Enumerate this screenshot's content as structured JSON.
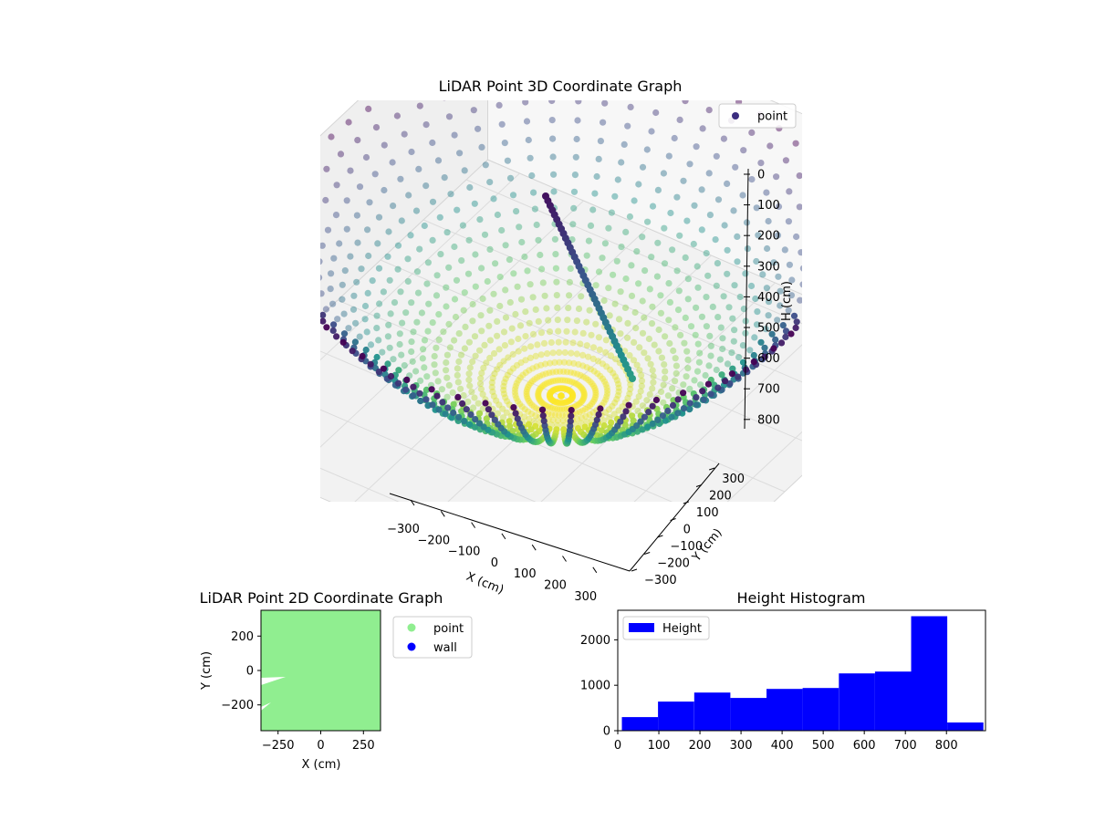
{
  "chart_data": [
    {
      "type": "scatter",
      "title": "LiDAR Point 3D Coordinate Graph",
      "xlabel": "X (cm)",
      "ylabel": "Y (cm)",
      "zlabel": "H (cm)",
      "xlim": [
        -350,
        350
      ],
      "ylim": [
        -350,
        350
      ],
      "zlim": [
        0,
        900
      ],
      "z_inverted": true,
      "x_ticks": [
        "−300",
        "−200",
        "−100",
        "0",
        "100",
        "200",
        "300"
      ],
      "y_ticks": [
        "−300",
        "−200",
        "−100",
        "0",
        "100",
        "200",
        "300"
      ],
      "z_ticks": [
        "0",
        "100",
        "200",
        "300",
        "400",
        "500",
        "600",
        "700",
        "800"
      ],
      "legend": [
        "point"
      ],
      "legend_position": "top-right",
      "colormap": "viridis",
      "colors": {
        "point_legend": "#3b2d7f"
      },
      "grid": true
    },
    {
      "type": "scatter",
      "title": "LiDAR Point 2D Coordinate Graph",
      "xlabel": "X (cm)",
      "ylabel": "Y (cm)",
      "xlim": [
        -350,
        350
      ],
      "ylim": [
        -350,
        350
      ],
      "x_ticks": [
        -250,
        0,
        250
      ],
      "y_ticks": [
        -200,
        0,
        200
      ],
      "x_tick_labels": [
        "−250",
        "0",
        "250"
      ],
      "y_tick_labels": [
        "−200",
        "0",
        "200"
      ],
      "legend": [
        "point",
        "wall"
      ],
      "legend_position": "outside-right",
      "colors": {
        "point": "#90ee90",
        "wall": "#0000ff"
      },
      "grid": false
    },
    {
      "type": "bar",
      "title": "Height Histogram",
      "xlabel": "",
      "ylabel": "",
      "bin_edges": [
        10,
        98,
        186,
        274,
        362,
        450,
        538,
        626,
        714,
        802,
        890
      ],
      "values": [
        300,
        640,
        840,
        720,
        920,
        940,
        1260,
        1300,
        2520,
        180
      ],
      "xlim": [
        0,
        895
      ],
      "ylim": [
        0,
        2650
      ],
      "x_ticks": [
        0,
        100,
        200,
        300,
        400,
        500,
        600,
        700,
        800
      ],
      "y_ticks": [
        0,
        1000,
        2000
      ],
      "series": [
        {
          "name": "Height"
        }
      ],
      "legend_position": "top-left",
      "colors": {
        "bar": "#0000ff"
      },
      "grid": false
    }
  ]
}
